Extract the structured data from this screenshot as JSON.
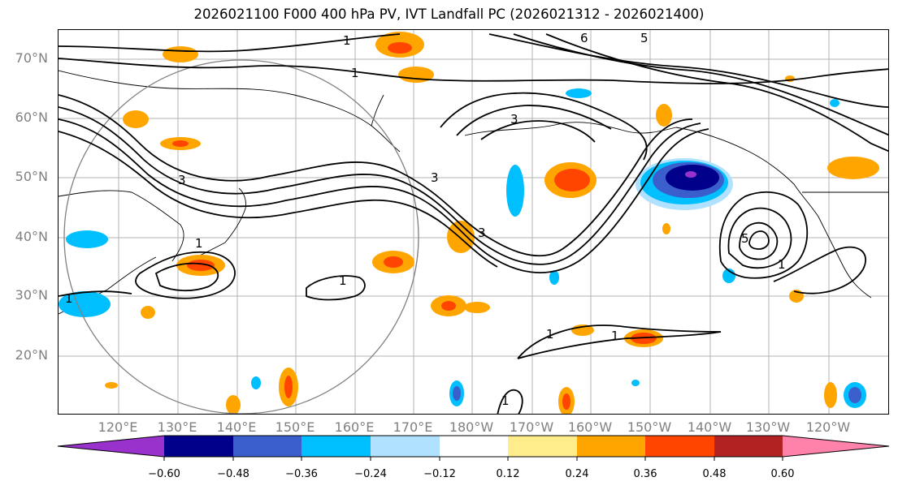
{
  "title": "2026021100 F000 400 hPa PV, IVT Landfall PC (2026021312 - 2026021400)",
  "lat_labels": [
    "70°N",
    "60°N",
    "50°N",
    "40°N",
    "30°N",
    "20°N"
  ],
  "lon_labels": [
    "120°E",
    "130°E",
    "140°E",
    "150°E",
    "160°E",
    "170°E",
    "180°W",
    "170°W",
    "160°W",
    "150°W",
    "140°W",
    "130°W",
    "120°W"
  ],
  "contour_labels": [
    "1",
    "1",
    "6",
    "5",
    "3",
    "3",
    "3",
    "3",
    "1",
    "1",
    "1",
    "1",
    "1",
    "1",
    "5",
    "1"
  ],
  "colorbar": {
    "colors": [
      "#9932cc",
      "#00008b",
      "#3a5fcd",
      "#00bfff",
      "#b0e2ff",
      "#ffffff",
      "#ffec8b",
      "#ffa500",
      "#ff4500",
      "#b22222",
      "#ff82ab"
    ],
    "tick_labels": [
      "−0.60",
      "−0.48",
      "−0.36",
      "−0.24",
      "−0.12",
      "0.12",
      "0.24",
      "0.36",
      "0.48",
      "0.60"
    ]
  }
}
